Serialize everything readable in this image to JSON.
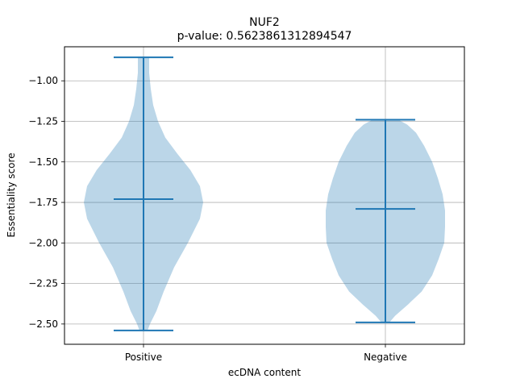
{
  "chart_data": {
    "type": "violin",
    "title": "NUF2",
    "subtitle": "p-value: 0.5623861312894547",
    "xlabel": "ecDNA content",
    "ylabel": "Essentiality score",
    "categories": [
      "Positive",
      "Negative"
    ],
    "ylim": [
      -2.625,
      -0.79
    ],
    "yticks": [
      -2.5,
      -2.25,
      -2.0,
      -1.75,
      -1.5,
      -1.25,
      -1.0
    ],
    "ytick_labels": [
      "−2.50",
      "−2.25",
      "−2.00",
      "−1.75",
      "−1.50",
      "−1.25",
      "−1.00"
    ],
    "grid": true,
    "colors": {
      "body": "#1f77b4",
      "body_alpha": 0.3,
      "lines": "#1f77b4"
    },
    "series": [
      {
        "category": "Positive",
        "min": -2.54,
        "median": -1.73,
        "max": -0.855,
        "density": [
          [
            -2.54,
            0.05
          ],
          [
            -2.5,
            0.08
          ],
          [
            -2.42,
            0.16
          ],
          [
            -2.3,
            0.25
          ],
          [
            -2.15,
            0.38
          ],
          [
            -2.0,
            0.55
          ],
          [
            -1.85,
            0.7
          ],
          [
            -1.75,
            0.74
          ],
          [
            -1.65,
            0.7
          ],
          [
            -1.55,
            0.58
          ],
          [
            -1.45,
            0.42
          ],
          [
            -1.35,
            0.27
          ],
          [
            -1.25,
            0.18
          ],
          [
            -1.15,
            0.12
          ],
          [
            -1.05,
            0.09
          ],
          [
            -0.95,
            0.07
          ],
          [
            -0.855,
            0.07
          ]
        ]
      },
      {
        "category": "Negative",
        "min": -2.49,
        "median": -1.79,
        "max": -1.24,
        "density": [
          [
            -2.49,
            0.05
          ],
          [
            -2.45,
            0.12
          ],
          [
            -2.38,
            0.28
          ],
          [
            -2.3,
            0.45
          ],
          [
            -2.2,
            0.58
          ],
          [
            -2.1,
            0.66
          ],
          [
            -2.0,
            0.73
          ],
          [
            -1.9,
            0.74
          ],
          [
            -1.8,
            0.74
          ],
          [
            -1.7,
            0.71
          ],
          [
            -1.6,
            0.65
          ],
          [
            -1.5,
            0.58
          ],
          [
            -1.4,
            0.48
          ],
          [
            -1.32,
            0.38
          ],
          [
            -1.27,
            0.27
          ],
          [
            -1.24,
            0.16
          ]
        ]
      }
    ]
  }
}
